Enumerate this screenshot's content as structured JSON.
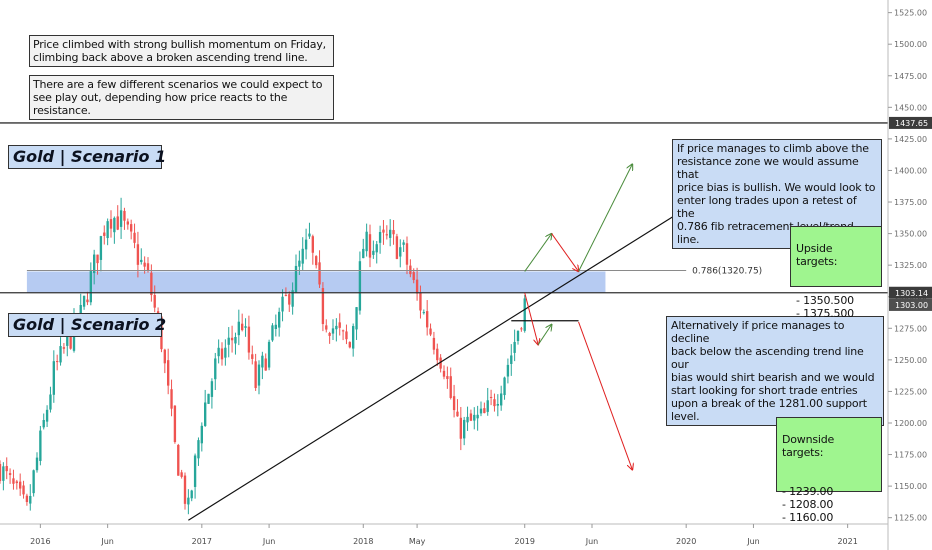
{
  "chart_data": {
    "type": "candlestick",
    "y_ticks": [
      "1525.00",
      "1500.00",
      "1475.00",
      "1450.00",
      "1425.00",
      "1400.00",
      "1375.00",
      "1350.00",
      "1325.00",
      "1300.00",
      "1275.00",
      "1250.00",
      "1225.00",
      "1200.00",
      "1175.00",
      "1150.00",
      "1125.00"
    ],
    "x_ticks": [
      {
        "label": "2016",
        "date": "2016-01"
      },
      {
        "label": "Jun",
        "date": "2016-06"
      },
      {
        "label": "2017",
        "date": "2017-01"
      },
      {
        "label": "Jun",
        "date": "2017-06"
      },
      {
        "label": "2018",
        "date": "2018-01"
      },
      {
        "label": "May",
        "date": "2018-05"
      },
      {
        "label": "2019",
        "date": "2019-01"
      },
      {
        "label": "Jun",
        "date": "2019-06"
      },
      {
        "label": "2020",
        "date": "2020-01"
      },
      {
        "label": "Jun",
        "date": "2020-06"
      },
      {
        "label": "2021",
        "date": "2021-01"
      }
    ],
    "ylim": [
      1120,
      1535
    ],
    "xlim": [
      "2015-10",
      "2021-04"
    ],
    "price_path": [
      {
        "date": "2015-10",
        "price": 1165
      },
      {
        "date": "2015-12",
        "price": 1130
      },
      {
        "date": "2016-02",
        "price": 1240
      },
      {
        "date": "2016-04",
        "price": 1285
      },
      {
        "date": "2016-06",
        "price": 1365
      },
      {
        "date": "2016-07",
        "price": 1360
      },
      {
        "date": "2016-09",
        "price": 1315
      },
      {
        "date": "2016-10",
        "price": 1265
      },
      {
        "date": "2016-11",
        "price": 1180
      },
      {
        "date": "2016-12",
        "price": 1130
      },
      {
        "date": "2017-01",
        "price": 1205
      },
      {
        "date": "2017-02",
        "price": 1245
      },
      {
        "date": "2017-04",
        "price": 1280
      },
      {
        "date": "2017-05",
        "price": 1230
      },
      {
        "date": "2017-06",
        "price": 1260
      },
      {
        "date": "2017-07",
        "price": 1290
      },
      {
        "date": "2017-09",
        "price": 1345
      },
      {
        "date": "2017-10",
        "price": 1285
      },
      {
        "date": "2017-12",
        "price": 1260
      },
      {
        "date": "2018-01",
        "price": 1340
      },
      {
        "date": "2018-03",
        "price": 1345
      },
      {
        "date": "2018-04",
        "price": 1335
      },
      {
        "date": "2018-05",
        "price": 1300
      },
      {
        "date": "2018-07",
        "price": 1245
      },
      {
        "date": "2018-08",
        "price": 1195
      },
      {
        "date": "2018-10",
        "price": 1205
      },
      {
        "date": "2018-11",
        "price": 1225
      },
      {
        "date": "2018-12",
        "price": 1255
      },
      {
        "date": "2019-01",
        "price": 1295
      }
    ],
    "horizontal_levels": [
      {
        "price": 1437.65,
        "label": "1437.65"
      },
      {
        "price": 1303.14,
        "label": "1303.14"
      }
    ],
    "current_price": {
      "price": 1303.0,
      "label": "1303.00"
    },
    "resistance_zone": {
      "from_date": "2015-12",
      "to_date": "2019-07",
      "low": 1303,
      "high": 1320
    },
    "fib_level": {
      "label": "0.786(1320.75)",
      "price": 1320.75
    },
    "support_level": 1281.0,
    "trend_line": {
      "start": {
        "date": "2016-12",
        "price": 1123
      },
      "end": {
        "date": "2020-01",
        "price": 1370
      }
    },
    "scenario_1_path": [
      {
        "date": "2019-01",
        "price": 1320
      },
      {
        "date": "2019-03",
        "price": 1350
      },
      {
        "date": "2019-05",
        "price": 1320
      },
      {
        "date": "2019-09",
        "price": 1405
      }
    ],
    "scenario_2_path": [
      {
        "date": "2019-01",
        "price": 1303
      },
      {
        "date": "2019-02",
        "price": 1262
      },
      {
        "date": "2019-03",
        "price": 1278
      },
      {
        "date": "2019-05",
        "price": 1280
      },
      {
        "date": "2019-09",
        "price": 1163
      }
    ]
  },
  "notes": {
    "intro_1": "Price climbed with strong bullish momentum on Friday,\nclimbing back above a broken ascending trend line.",
    "intro_2": "There are a few different scenarios we could expect to\nsee play out, depending how price reacts to the\nresistance.",
    "scenario_1_title": "Gold | Scenario 1",
    "scenario_2_title": "Gold | Scenario 2",
    "bullish_text": "If price manages to climb above the\nresistance zone we would assume that\nprice bias is bullish. We would look to\nenter long trades upon a retest of the\n0.786 fib retracement level/trend line.",
    "bearish_text": "Alternatively if price manages to decline\nback below the ascending trend line our\nbias would shirt bearish and we would\nstart looking for short trade entries\nupon a break of the 1281.00 support\nlevel.",
    "upside_title": "Upside targets:",
    "upside_targets": "- 1350.500\n- 1375.500",
    "downside_title": "Downside targets:",
    "downside_targets": "- 1239.00\n- 1208.00\n- 1160.00"
  },
  "colors": {
    "up_candle": "#26a69a",
    "down_candle": "#ef5350",
    "zone_fill": "#a9c2f0",
    "bullish_arrow": "#4a8c3c",
    "bearish_arrow": "#e02020",
    "level_line": "#333333",
    "label_dark": "#3b3b3b",
    "label_current": "#4f4f4f"
  }
}
